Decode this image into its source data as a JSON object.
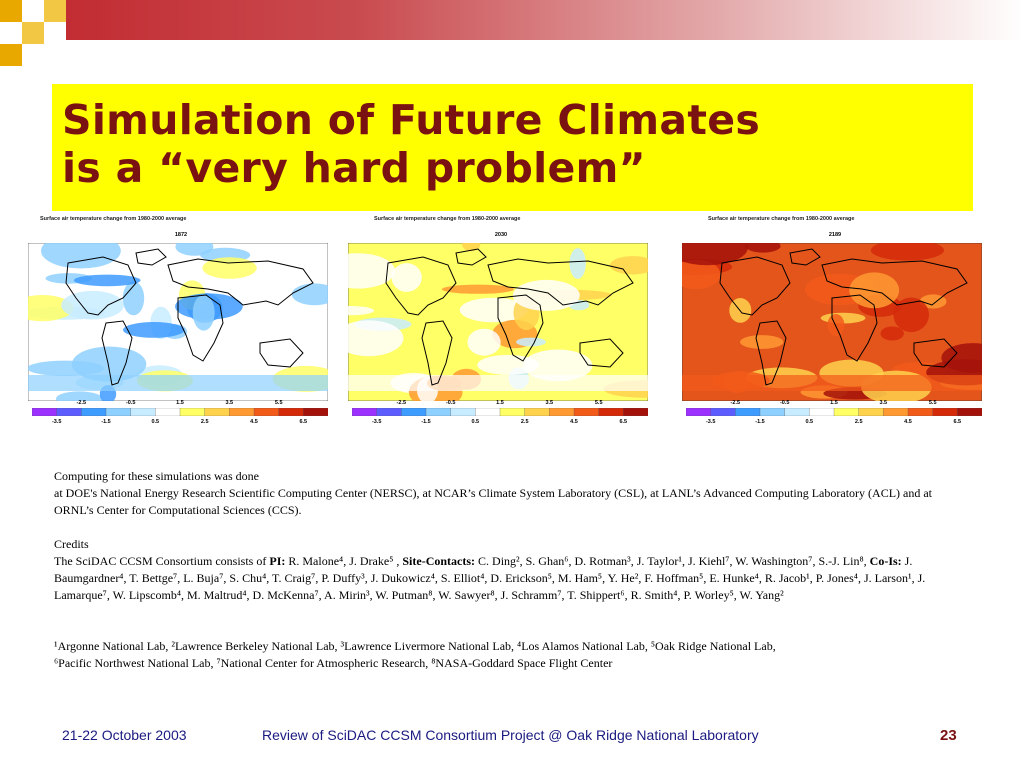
{
  "slide": {
    "title_lines": [
      "Simulation of Future Climates",
      "is a “very hard problem”"
    ],
    "page_number": "23"
  },
  "colors": {
    "title_text": "#7a1212",
    "title_bg": "#ffff00",
    "top_bar": "#c0262c",
    "footer_text": "#1a1a80"
  },
  "panels": [
    {
      "caption": "Surface air temperature change from 1980-2000 average",
      "year": "1872",
      "palette": "cool"
    },
    {
      "caption": "Surface air temperature change from 1980-2000 average",
      "year": "2030",
      "palette": "mild"
    },
    {
      "caption": "Surface air temperature change from 1980-2000 average",
      "year": "2189",
      "palette": "hot"
    }
  ],
  "colorbar": {
    "top_ticks": [
      "-2.5",
      "-0.5",
      "1.5",
      "3.5",
      "5.5"
    ],
    "bottom_ticks": [
      "-3.5",
      "-1.5",
      "0.5",
      "2.5",
      "4.5",
      "6.5"
    ],
    "colors": [
      "#9b30ff",
      "#5d5dff",
      "#3e9bff",
      "#8ed0ff",
      "#c8ecff",
      "#ffffff",
      "#ffff66",
      "#ffd24d",
      "#ff9a33",
      "#f25a1a",
      "#d42a0a",
      "#a3120a"
    ]
  },
  "credits": {
    "line1": "Computing for these simulations was done",
    "line2": " at DOE's National Energy Research Scientific Computing Center (NERSC), at NCAR’s Climate System Laboratory (CSL), at LANL’s Advanced Computing Laboratory (ACL) and at ORNL’s Center for Computational Sciences (CCS).",
    "credits_heading": "Credits",
    "consortium_intro": " The SciDAC CCSM Consortium consists of ",
    "pi_label": "PI:",
    "pi_names": " R. Malone⁴, J. Drake⁵ , ",
    "site_label": "Site-Contacts:",
    "site_names": " C. Ding², S. Ghan⁶, D. Rotman³, J. Taylor¹, J. Kiehl⁷, W. Washington⁷, S.-J. Lin⁸, ",
    "coi_label": "Co-Is:",
    "coi_names": " J. Baumgardner⁴, T. Bettge⁷, L. Buja⁷, S. Chu⁴, T. Craig⁷, P. Duffy³, J. Dukowicz⁴, S. Elliot⁴, D. Erickson⁵, M. Ham⁵, Y. He², F. Hoffman⁵, E. Hunke⁴, R. Jacob¹, P. Jones⁴, J. Larson¹, J. Lamarque⁷, W. Lipscomb⁴, M. Maltrud⁴, D. McKenna⁷, A. Mirin³, W. Putman⁸, W. Sawyer⁸, J. Schramm⁷, T. Shippert⁶, R. Smith⁴, P. Worley⁵, W. Yang²",
    "affil_line1": "¹Argonne National Lab, ²Lawrence Berkeley National Lab, ³Lawrence Livermore National Lab, ⁴Los Alamos National Lab, ⁵Oak Ridge National Lab,",
    "affil_line2": "⁶Pacific Northwest National Lab, ⁷National Center for Atmospheric Research, ⁸NASA-Goddard Space Flight Center"
  },
  "footer": {
    "date": "21-22 October 2003",
    "center": "Review of SciDAC CCSM Consortium Project @ Oak Ridge National Laboratory"
  }
}
